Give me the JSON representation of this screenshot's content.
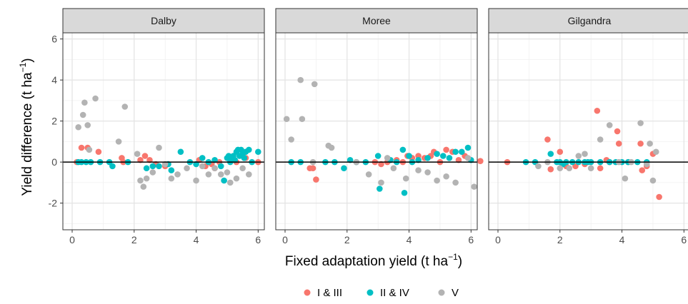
{
  "chart_data": {
    "type": "scatter",
    "facets": [
      "Dalby",
      "Moree",
      "Gilgandra"
    ],
    "xlabel": "Fixed adaptation yield (t ha",
    "xlabel_sup": "−1",
    "xlabel_end": ")",
    "ylabel": "Yield difference (t ha",
    "ylabel_sup": "−1",
    "ylabel_end": ")",
    "xlim": [
      -0.3,
      6.2
    ],
    "ylim": [
      -3.3,
      6.3
    ],
    "xticks": [
      0,
      2,
      4,
      6
    ],
    "yticks": [
      -2,
      0,
      2,
      4,
      6
    ],
    "grid": true,
    "hline": 0,
    "legend_position": "bottom",
    "series": [
      {
        "name": "I & III",
        "color": "#F8766D",
        "points": [
          [
            [
              0.15,
              0.0
            ],
            [
              0.3,
              0.7
            ],
            [
              0.5,
              0.7
            ],
            [
              0.85,
              0.5
            ],
            [
              1.6,
              0.2
            ],
            [
              1.65,
              0.0
            ],
            [
              2.2,
              0.1
            ],
            [
              2.35,
              0.3
            ],
            [
              2.5,
              0.1
            ],
            [
              2.7,
              -0.1
            ],
            [
              3.0,
              -0.2
            ],
            [
              4.1,
              0.1
            ],
            [
              4.3,
              -0.2
            ],
            [
              4.5,
              -0.1
            ],
            [
              4.6,
              -0.3
            ],
            [
              4.75,
              0.0
            ],
            [
              5.3,
              0.0
            ],
            [
              5.6,
              0.2
            ],
            [
              6.0,
              0.0
            ]
          ],
          [
            [
              0.8,
              -0.3
            ],
            [
              0.9,
              -0.3
            ],
            [
              1.0,
              -0.85
            ],
            [
              2.9,
              0.0
            ],
            [
              3.1,
              -0.1
            ],
            [
              3.3,
              0.0
            ],
            [
              3.6,
              0.1
            ],
            [
              3.8,
              0.0
            ],
            [
              3.95,
              0.3
            ],
            [
              4.1,
              0.2
            ],
            [
              4.3,
              0.3
            ],
            [
              4.5,
              0.2
            ],
            [
              4.7,
              0.3
            ],
            [
              4.8,
              0.5
            ],
            [
              5.0,
              0.0
            ],
            [
              5.2,
              0.6
            ],
            [
              5.4,
              0.5
            ],
            [
              5.6,
              0.1
            ],
            [
              5.8,
              0.3
            ],
            [
              6.3,
              0.05
            ]
          ],
          [
            [
              0.3,
              0.0
            ],
            [
              1.6,
              1.1
            ],
            [
              1.7,
              -0.35
            ],
            [
              2.0,
              0.5
            ],
            [
              2.2,
              -0.2
            ],
            [
              2.5,
              -0.2
            ],
            [
              2.8,
              -0.1
            ],
            [
              3.2,
              2.5
            ],
            [
              3.3,
              -0.3
            ],
            [
              3.5,
              0.1
            ],
            [
              3.6,
              0.0
            ],
            [
              3.85,
              1.5
            ],
            [
              3.9,
              0.9
            ],
            [
              4.2,
              0.0
            ],
            [
              4.6,
              0.9
            ],
            [
              4.65,
              -0.4
            ],
            [
              4.8,
              -0.2
            ],
            [
              5.0,
              0.4
            ],
            [
              5.2,
              -1.7
            ]
          ]
        ]
      },
      {
        "name": "II & IV",
        "color": "#00BFC4",
        "points": [
          [
            [
              0.2,
              0.0
            ],
            [
              0.3,
              0.0
            ],
            [
              0.45,
              0.0
            ],
            [
              0.6,
              0.0
            ],
            [
              0.9,
              0.0
            ],
            [
              1.2,
              0.0
            ],
            [
              1.3,
              -0.2
            ],
            [
              1.8,
              0.0
            ],
            [
              2.4,
              -0.3
            ],
            [
              2.6,
              -0.2
            ],
            [
              2.8,
              -0.2
            ],
            [
              3.1,
              -0.1
            ],
            [
              3.2,
              -0.4
            ],
            [
              3.5,
              0.5
            ],
            [
              3.8,
              0.0
            ],
            [
              4.0,
              -0.1
            ],
            [
              4.2,
              0.2
            ],
            [
              4.4,
              0.0
            ],
            [
              4.6,
              0.1
            ],
            [
              4.8,
              -0.2
            ],
            [
              4.9,
              -0.9
            ],
            [
              5.0,
              0.2
            ],
            [
              5.05,
              0.3
            ],
            [
              5.1,
              0.0
            ],
            [
              5.15,
              0.2
            ],
            [
              5.2,
              0.3
            ],
            [
              5.25,
              0.1
            ],
            [
              5.3,
              0.5
            ],
            [
              5.35,
              0.6
            ],
            [
              5.4,
              0.3
            ],
            [
              5.45,
              0.6
            ],
            [
              5.5,
              0.4
            ],
            [
              5.55,
              0.2
            ],
            [
              5.6,
              0.5
            ],
            [
              5.7,
              0.6
            ],
            [
              5.8,
              0.0
            ],
            [
              6.0,
              0.5
            ]
          ],
          [
            [
              0.2,
              0.0
            ],
            [
              0.5,
              0.0
            ],
            [
              1.3,
              0.0
            ],
            [
              1.6,
              0.0
            ],
            [
              1.9,
              -0.3
            ],
            [
              2.1,
              0.1
            ],
            [
              2.3,
              0.0
            ],
            [
              2.6,
              0.0
            ],
            [
              3.0,
              0.3
            ],
            [
              3.05,
              -1.3
            ],
            [
              3.4,
              0.1
            ],
            [
              3.6,
              0.0
            ],
            [
              3.8,
              0.6
            ],
            [
              3.85,
              -1.5
            ],
            [
              4.0,
              0.3
            ],
            [
              4.1,
              0.0
            ],
            [
              4.3,
              0.1
            ],
            [
              4.6,
              0.2
            ],
            [
              4.9,
              0.4
            ],
            [
              5.1,
              0.3
            ],
            [
              5.3,
              0.2
            ],
            [
              5.5,
              0.5
            ],
            [
              5.7,
              0.5
            ],
            [
              5.9,
              0.7
            ],
            [
              6.0,
              0.1
            ]
          ],
          [
            [
              0.9,
              0.0
            ],
            [
              1.2,
              0.0
            ],
            [
              1.7,
              0.4
            ],
            [
              1.9,
              0.0
            ],
            [
              2.0,
              0.0
            ],
            [
              2.1,
              -0.1
            ],
            [
              2.2,
              0.0
            ],
            [
              2.4,
              0.0
            ],
            [
              2.6,
              0.0
            ],
            [
              2.8,
              0.0
            ],
            [
              2.9,
              0.0
            ],
            [
              3.0,
              0.0
            ],
            [
              3.3,
              0.0
            ],
            [
              3.6,
              0.0
            ],
            [
              3.8,
              0.0
            ],
            [
              4.0,
              0.0
            ],
            [
              4.2,
              0.0
            ],
            [
              4.5,
              0.0
            ],
            [
              4.8,
              0.0
            ]
          ]
        ]
      },
      {
        "name": "V",
        "color": "#B3B3B3",
        "points": [
          [
            [
              0.2,
              1.7
            ],
            [
              0.35,
              2.3
            ],
            [
              0.4,
              2.9
            ],
            [
              0.5,
              1.8
            ],
            [
              0.55,
              0.6
            ],
            [
              0.75,
              3.1
            ],
            [
              1.5,
              1.0
            ],
            [
              1.7,
              2.7
            ],
            [
              2.1,
              0.4
            ],
            [
              2.2,
              -0.9
            ],
            [
              2.3,
              -1.2
            ],
            [
              2.4,
              -0.8
            ],
            [
              2.6,
              -0.5
            ],
            [
              2.8,
              0.7
            ],
            [
              3.0,
              -0.1
            ],
            [
              3.2,
              -0.8
            ],
            [
              3.4,
              -0.6
            ],
            [
              3.7,
              -0.3
            ],
            [
              4.0,
              -0.9
            ],
            [
              4.2,
              -0.2
            ],
            [
              4.4,
              -0.6
            ],
            [
              4.6,
              -0.3
            ],
            [
              4.8,
              -0.6
            ],
            [
              5.0,
              -0.5
            ],
            [
              5.1,
              -1.0
            ],
            [
              5.3,
              -0.8
            ],
            [
              5.5,
              -0.3
            ],
            [
              5.7,
              -0.6
            ]
          ],
          [
            [
              0.05,
              2.1
            ],
            [
              0.2,
              1.1
            ],
            [
              0.5,
              4.0
            ],
            [
              0.55,
              2.1
            ],
            [
              0.9,
              0.0
            ],
            [
              0.95,
              3.8
            ],
            [
              1.4,
              0.8
            ],
            [
              1.5,
              0.7
            ],
            [
              2.3,
              0.0
            ],
            [
              2.7,
              -0.6
            ],
            [
              3.1,
              -1.0
            ],
            [
              3.3,
              0.2
            ],
            [
              3.5,
              -0.3
            ],
            [
              3.9,
              -0.8
            ],
            [
              4.3,
              -0.4
            ],
            [
              4.6,
              -0.5
            ],
            [
              4.9,
              -0.9
            ],
            [
              5.2,
              -0.7
            ],
            [
              5.5,
              -1.0
            ],
            [
              5.9,
              0.2
            ],
            [
              6.1,
              -1.2
            ]
          ],
          [
            [
              1.3,
              -0.2
            ],
            [
              1.6,
              0.0
            ],
            [
              2.0,
              -0.3
            ],
            [
              2.3,
              -0.3
            ],
            [
              2.6,
              0.3
            ],
            [
              2.8,
              0.4
            ],
            [
              3.0,
              -0.3
            ],
            [
              3.3,
              1.1
            ],
            [
              3.6,
              1.8
            ],
            [
              3.9,
              0.0
            ],
            [
              4.1,
              -0.8
            ],
            [
              4.3,
              0.0
            ],
            [
              4.6,
              1.9
            ],
            [
              4.8,
              -0.1
            ],
            [
              4.9,
              0.9
            ],
            [
              5.0,
              -0.9
            ],
            [
              5.1,
              0.5
            ]
          ]
        ]
      }
    ]
  }
}
